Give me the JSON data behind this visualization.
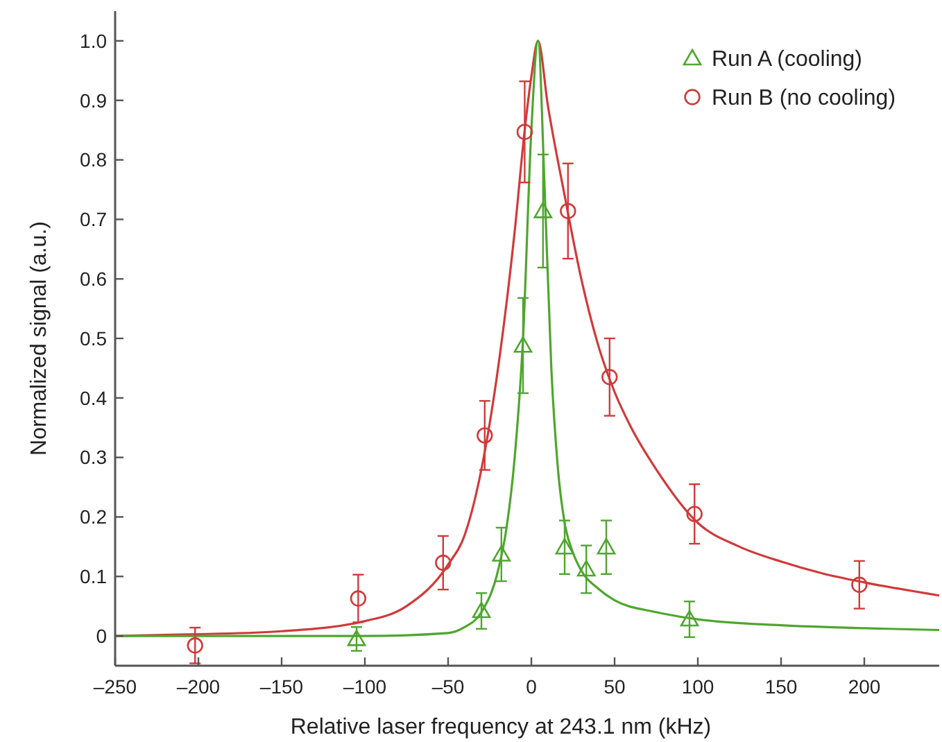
{
  "chart_data": {
    "type": "scatter",
    "xlabel": "Relative laser frequency at 243.1 nm (kHz)",
    "ylabel": "Normalized signal (a.u.)",
    "xlim": [
      -250,
      245
    ],
    "xticks": [
      {
        "value": -250,
        "label": "–250"
      },
      {
        "value": -200,
        "label": "–200"
      },
      {
        "value": -150,
        "label": "–150"
      },
      {
        "value": -100,
        "label": "–100"
      },
      {
        "value": -50,
        "label": "–50"
      },
      0,
      50,
      100,
      150,
      200
    ],
    "ylim": [
      -0.05,
      1.05
    ],
    "yticks": [
      0,
      0.1,
      0.2,
      0.3,
      0.4,
      0.5,
      0.6,
      0.7,
      0.8,
      0.9,
      {
        "value": 1,
        "label": "1.0"
      }
    ],
    "grid": false,
    "legend": "top right",
    "series": [
      {
        "type": "line",
        "color": "#d03a3a",
        "x": [
          -250,
          -200,
          -150,
          -100,
          -75,
          -50,
          -40,
          -30,
          -20,
          -10,
          -4,
          0,
          4,
          10,
          20,
          30,
          40,
          50,
          60,
          75,
          100,
          125,
          150,
          175,
          200,
          245
        ],
        "values": [
          0,
          0.003,
          0.008,
          0.025,
          0.05,
          0.12,
          0.17,
          0.28,
          0.45,
          0.68,
          0.85,
          0.94,
          1.0,
          0.89,
          0.74,
          0.6,
          0.49,
          0.41,
          0.35,
          0.28,
          0.19,
          0.15,
          0.125,
          0.105,
          0.09,
          0.068
        ]
      },
      {
        "type": "line",
        "color": "#4ea62e",
        "x": [
          -250,
          -100,
          -50,
          -40,
          -30,
          -20,
          -15,
          -10,
          -5,
          0,
          4,
          8,
          12,
          16,
          20,
          25,
          30,
          40,
          50,
          75,
          100,
          150,
          200,
          245
        ],
        "values": [
          0,
          0,
          0.005,
          0.015,
          0.04,
          0.11,
          0.18,
          0.3,
          0.5,
          0.85,
          1.0,
          0.75,
          0.45,
          0.28,
          0.19,
          0.14,
          0.11,
          0.08,
          0.06,
          0.04,
          0.028,
          0.018,
          0.013,
          0.01
        ]
      },
      {
        "name": "Run A (cooling)",
        "color": "#4ea62e",
        "marker": "triangle",
        "x": [
          -105,
          -30,
          -18,
          -5,
          7,
          20,
          33,
          45,
          95
        ],
        "values": [
          -0.005,
          0.042,
          0.137,
          0.488,
          0.714,
          0.149,
          0.112,
          0.149,
          0.028
        ],
        "errors": [
          0.02,
          0.03,
          0.045,
          0.08,
          0.095,
          0.045,
          0.04,
          0.045,
          0.03
        ]
      },
      {
        "name": "Run B (no cooling)",
        "color": "#d03a3a",
        "marker": "circle",
        "x": [
          -202,
          -104,
          -53,
          -28,
          -4,
          22,
          47,
          98,
          197
        ],
        "values": [
          -0.016,
          0.063,
          0.123,
          0.337,
          0.847,
          0.714,
          0.435,
          0.205,
          0.086
        ],
        "errors": [
          0.03,
          0.04,
          0.045,
          0.058,
          0.085,
          0.08,
          0.065,
          0.05,
          0.04
        ]
      }
    ]
  }
}
